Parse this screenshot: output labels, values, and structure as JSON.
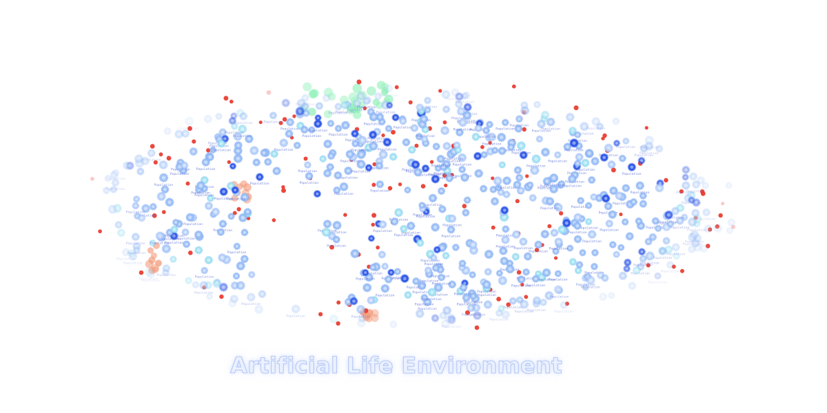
{
  "title": "Artificial Life Environment",
  "entity_label": "Population",
  "colors": {
    "blue_light": "#9ec2f7",
    "blue_mid": "#6f9bf0",
    "blue_dark": "#2f59e8",
    "cyan": "#a6e4f5",
    "predator_red": "#e8382c",
    "pink_faint": "#f6b3b3",
    "orange": "#f39a7a",
    "green": "#8ef0b8",
    "label_text": "#5a6fd6"
  },
  "icons": {
    "organism": "organism-cell-icon",
    "predator": "predator-dot-icon",
    "food": "food-cluster-icon"
  }
}
